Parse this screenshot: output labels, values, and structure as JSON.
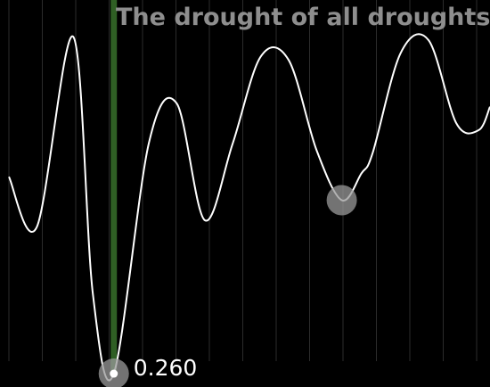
{
  "chart_data": {
    "type": "line",
    "title": "The drought of all droughts",
    "xlabel": "",
    "ylabel": "",
    "grid": true,
    "legend": "none",
    "xlim": [
      0,
      17.2
    ],
    "ylim": [
      0.22,
      1.38
    ],
    "x": [
      0,
      1,
      2.3,
      3,
      3.75,
      5,
      6,
      7,
      8,
      9,
      10,
      11,
      11.9,
      12.6,
      13,
      14,
      15,
      16,
      16.8,
      17.2
    ],
    "values": [
      0.85,
      0.7,
      1.27,
      0.5,
      0.26,
      0.95,
      1.07,
      0.72,
      0.95,
      1.21,
      1.2,
      0.93,
      0.78,
      0.86,
      0.92,
      1.22,
      1.26,
      1.01,
      0.99,
      1.06
    ],
    "colors": {
      "background": "#000000",
      "line": "#ffffff",
      "gridline": "#2b2b2b",
      "highlight_bar": "#2f5f24",
      "marker_halo": "#9a9a9a",
      "marker_dot": "#ffffff",
      "title": "#8e8e8e",
      "label": "#ffffff"
    },
    "highlight": {
      "x": 3.75,
      "value": 0.26,
      "label": "0.260"
    },
    "secondary_marker": {
      "x": 11.9,
      "value": 0.78
    }
  }
}
